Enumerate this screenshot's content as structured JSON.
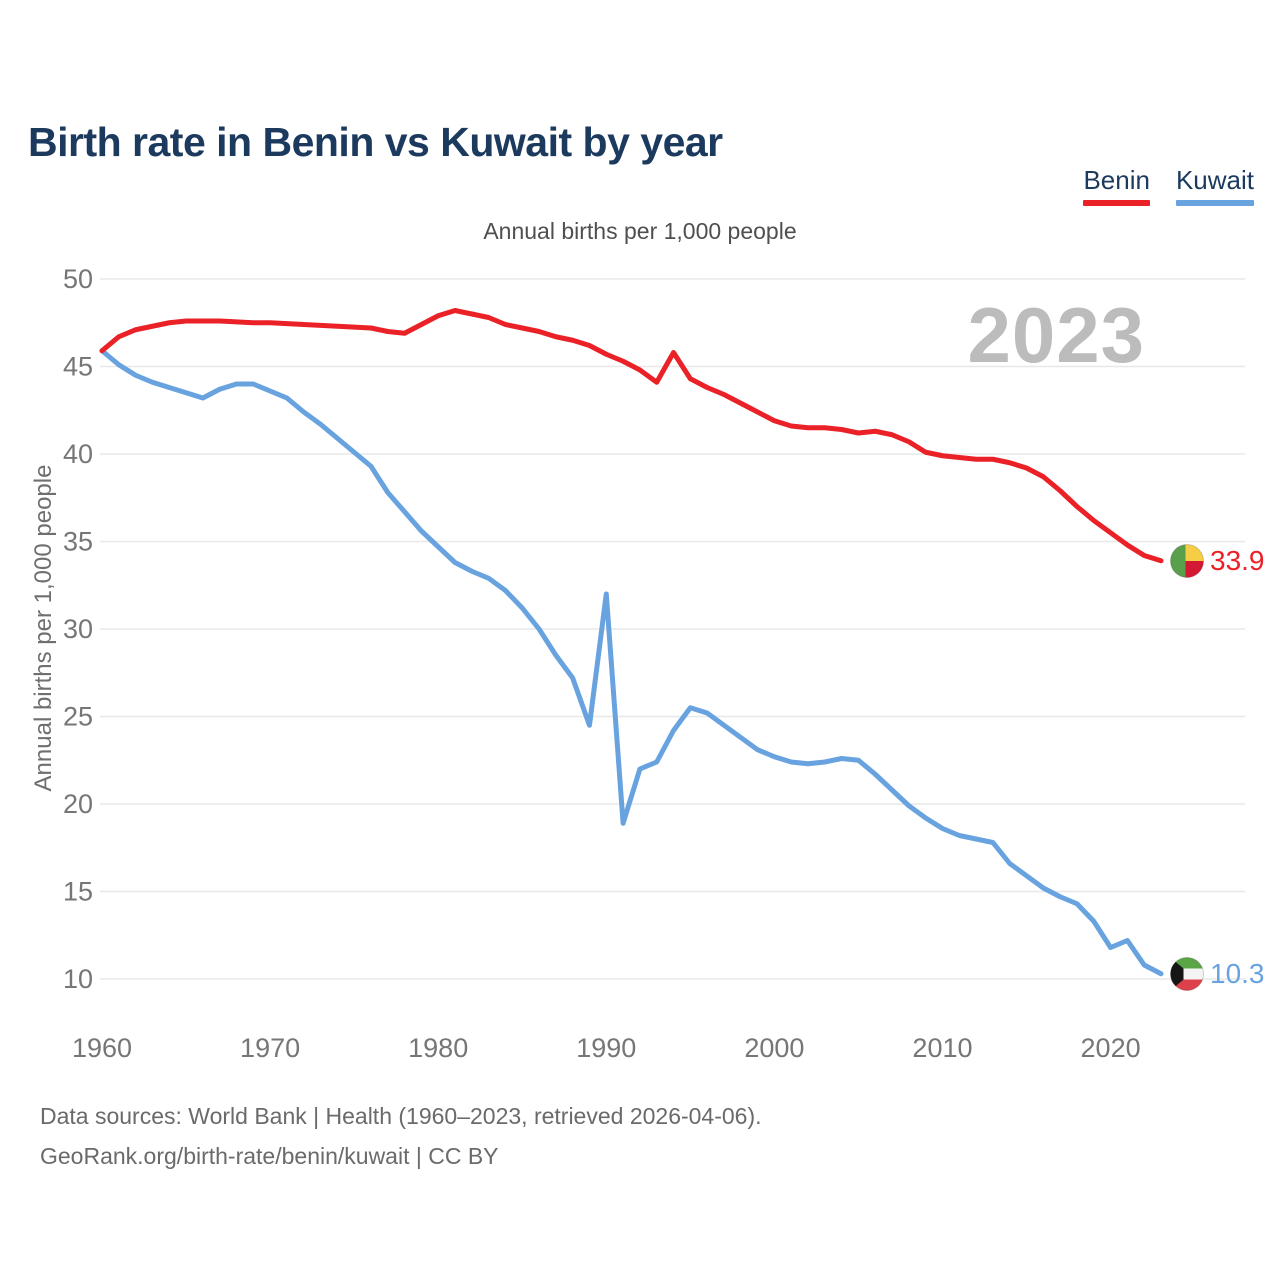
{
  "page": {
    "footer_line1": "Data sources: World Bank | Health (1960–2023, retrieved 2026-04-06).",
    "footer_line2": "GeoRank.org/birth-rate/benin/kuwait | CC BY"
  },
  "chart_data": {
    "type": "line",
    "title": "Birth rate in Benin vs Kuwait by year",
    "subtitle": "Annual births per 1,000 people",
    "ylabel": "Annual births per 1,000 people",
    "xlabel": "",
    "watermark": "2023",
    "grid": "horizontal",
    "legend_position": "top-right",
    "xlim": [
      1960,
      2023
    ],
    "ylim": [
      10,
      50
    ],
    "yticks": [
      50,
      45,
      40,
      35,
      30,
      25,
      20,
      15,
      10
    ],
    "xticks": [
      1960,
      1970,
      1980,
      1990,
      2000,
      2010,
      2020
    ],
    "years": [
      1960,
      1961,
      1962,
      1963,
      1964,
      1965,
      1966,
      1967,
      1968,
      1969,
      1970,
      1971,
      1972,
      1973,
      1974,
      1975,
      1976,
      1977,
      1978,
      1979,
      1980,
      1981,
      1982,
      1983,
      1984,
      1985,
      1986,
      1987,
      1988,
      1989,
      1990,
      1991,
      1992,
      1993,
      1994,
      1995,
      1996,
      1997,
      1998,
      1999,
      2000,
      2001,
      2002,
      2003,
      2004,
      2005,
      2006,
      2007,
      2008,
      2009,
      2010,
      2011,
      2012,
      2013,
      2014,
      2015,
      2016,
      2017,
      2018,
      2019,
      2020,
      2021,
      2022,
      2023
    ],
    "series": [
      {
        "name": "Benin",
        "color": "#ea2127",
        "end_label": "33.9",
        "flag": "benin-flag",
        "values": [
          45.9,
          46.7,
          47.1,
          47.3,
          47.5,
          47.6,
          47.6,
          47.6,
          47.55,
          47.5,
          47.5,
          47.45,
          47.4,
          47.35,
          47.3,
          47.25,
          47.2,
          47.0,
          46.9,
          47.4,
          47.9,
          48.2,
          48.0,
          47.8,
          47.4,
          47.2,
          47.0,
          46.7,
          46.5,
          46.2,
          45.7,
          45.3,
          44.8,
          44.1,
          45.8,
          44.3,
          43.8,
          43.4,
          42.9,
          42.4,
          41.9,
          41.6,
          41.5,
          41.5,
          41.4,
          41.2,
          41.3,
          41.1,
          40.7,
          40.1,
          39.9,
          39.8,
          39.7,
          39.7,
          39.5,
          39.2,
          38.7,
          37.9,
          37.0,
          36.2,
          35.5,
          34.8,
          34.2,
          33.9
        ]
      },
      {
        "name": "Kuwait",
        "color": "#68a3e0",
        "end_label": "10.3",
        "flag": "kuwait-flag",
        "values": [
          45.9,
          45.1,
          44.5,
          44.1,
          43.8,
          43.5,
          43.2,
          43.7,
          44.0,
          44.0,
          43.6,
          43.2,
          42.4,
          41.7,
          40.9,
          40.1,
          39.3,
          37.8,
          36.7,
          35.6,
          34.7,
          33.8,
          33.3,
          32.9,
          32.2,
          31.2,
          30.0,
          28.5,
          27.2,
          24.5,
          32.0,
          18.9,
          22.0,
          22.4,
          24.2,
          25.5,
          25.2,
          24.5,
          23.8,
          23.1,
          22.7,
          22.4,
          22.3,
          22.4,
          22.6,
          22.5,
          21.7,
          20.8,
          19.9,
          19.2,
          18.6,
          18.2,
          18.0,
          17.8,
          16.6,
          15.9,
          15.2,
          14.7,
          14.3,
          13.3,
          11.8,
          12.2,
          10.8,
          10.3
        ]
      }
    ]
  }
}
